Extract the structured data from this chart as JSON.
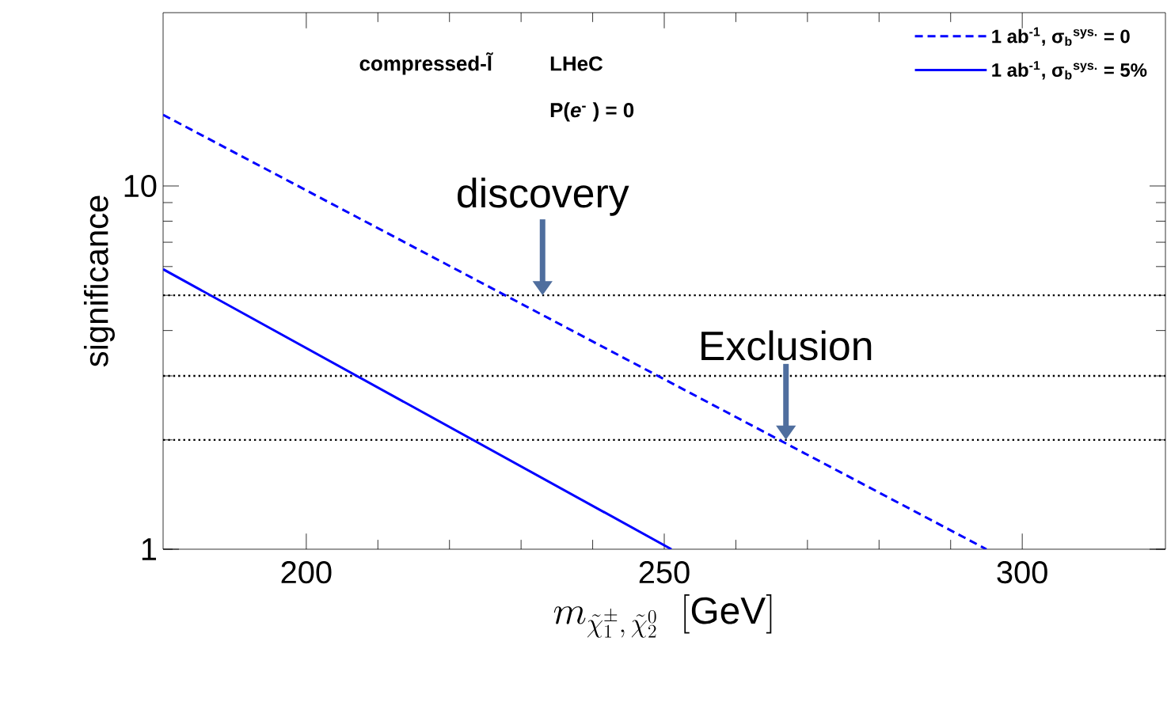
{
  "chart_data": {
    "type": "line",
    "xlabel": "m_{\\tilde{\\chi}_1^{\\pm},\\,\\tilde{\\chi}_2^{0}}\\;\\;\\mathrm{[GeV]}",
    "ylabel": "significance",
    "xlim": [
      180,
      320
    ],
    "ylim": [
      1,
      30
    ],
    "xticks": [
      200,
      250,
      300
    ],
    "yticks": [
      1,
      10
    ],
    "log": "y",
    "grid": false,
    "legend": "top right",
    "marker": "none",
    "series": [
      {
        "name": "1 ab$^{-1}$, σ$_{b}$$^{sys.}$ = 0",
        "color": "#0000ff",
        "line_style": "dashed",
        "x": [
          180,
          295
        ],
        "values": [
          15.7,
          1
        ]
      },
      {
        "name": "1 ab$^{-1}$, σ$_{b}$$^{sys.}$ = 5%",
        "color": "#0000ff",
        "line_style": "solid",
        "x": [
          180,
          251
        ],
        "values": [
          5.9,
          1
        ]
      }
    ],
    "ref_lines": [
      {
        "axis": "y",
        "value": 5,
        "color": "#000000",
        "line_style": "dotted"
      },
      {
        "axis": "y",
        "value": 3,
        "color": "#000000",
        "line_style": "dotted"
      },
      {
        "axis": "y",
        "value": 2,
        "color": "#000000",
        "line_style": "dotted"
      }
    ],
    "annotations": [
      "compressed-l̃",
      "LHeC",
      "P(*e*$^{-}$ ) = 0",
      {
        "text": "discovery",
        "x": 233,
        "y": 5
      },
      {
        "text": "Exclusion",
        "x": 267,
        "y": 2
      }
    ]
  }
}
